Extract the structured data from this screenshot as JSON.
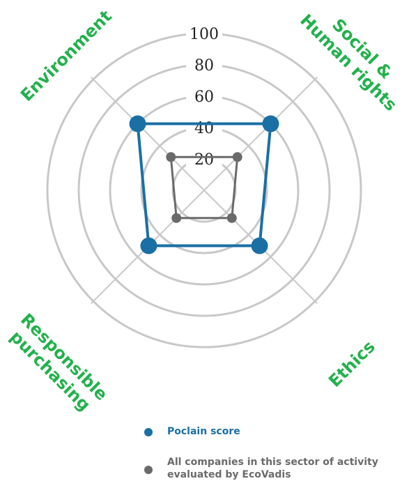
{
  "chart_data": {
    "type": "radar",
    "categories": [
      "Environment",
      "Social & Human rights",
      "Ethics",
      "Responsible purchasing"
    ],
    "category_lines": [
      [
        "Environment"
      ],
      [
        "Social &",
        "Human rights"
      ],
      [
        "Ethics"
      ],
      [
        "Responsible",
        "purchasing"
      ]
    ],
    "ticks": [
      20,
      40,
      60,
      80,
      100
    ],
    "rlim": [
      0,
      100
    ],
    "category_color": "#22b14c",
    "grid_color": "#c8c8c8",
    "series": [
      {
        "name": "Poclain score",
        "values": [
          60,
          60,
          50,
          50
        ],
        "color": "#1a6fa5"
      },
      {
        "name": "All companies in this sector of activity evaluated by EcoVadis",
        "values": [
          30,
          30,
          25,
          25
        ],
        "color": "#6a6a6a"
      }
    ]
  },
  "legend": {
    "items": [
      {
        "label": "Poclain score",
        "color": "#1a6fa5"
      },
      {
        "label": "All companies in this sector of activity evaluated by EcoVadis",
        "color": "#6a6a6a"
      }
    ]
  }
}
